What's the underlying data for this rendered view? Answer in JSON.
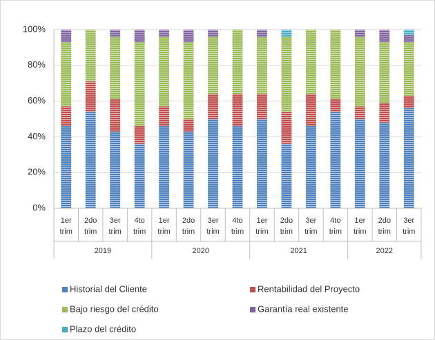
{
  "chart_data": {
    "type": "stacked_bar_percent",
    "category_groups": [
      {
        "name": "2019",
        "categories": [
          "1er trim",
          "2do trim",
          "3er trim",
          "4to trim"
        ]
      },
      {
        "name": "2020",
        "categories": [
          "1er trim",
          "2do trim",
          "3er trim",
          "4to trim"
        ]
      },
      {
        "name": "2021",
        "categories": [
          "1er trim",
          "2do trim",
          "3er trim",
          "4to trim"
        ]
      },
      {
        "name": "2022",
        "categories": [
          "1er trim",
          "2do trim",
          "3er trim"
        ]
      }
    ],
    "series": [
      {
        "name": "Historial del Cliente",
        "color": "#4f81bd",
        "values": [
          46,
          54,
          43,
          36,
          46,
          43,
          50,
          46,
          50,
          36,
          46,
          54,
          50,
          48,
          56
        ]
      },
      {
        "name": "Rentabilidad del Proyecto",
        "color": "#c0504d",
        "values": [
          11,
          17,
          18,
          10,
          11,
          7,
          14,
          18,
          14,
          18,
          18,
          7,
          7,
          11,
          7
        ]
      },
      {
        "name": "Bajo riesgo del crédito",
        "color": "#9bbb59",
        "values": [
          36,
          29,
          35,
          47,
          39,
          43,
          32,
          36,
          32,
          42,
          36,
          39,
          39,
          34,
          30
        ]
      },
      {
        "name": "Garantía real existente",
        "color": "#8064a2",
        "values": [
          7,
          0,
          4,
          7,
          4,
          7,
          4,
          0,
          4,
          0,
          0,
          0,
          4,
          7,
          4
        ]
      },
      {
        "name": "Plazo del crédito",
        "color": "#4bacc6",
        "values": [
          0,
          0,
          0,
          0,
          0,
          0,
          0,
          0,
          0,
          4,
          0,
          0,
          0,
          0,
          3
        ]
      }
    ],
    "ylim": [
      0,
      100
    ],
    "yticks": [
      {
        "value": 0,
        "label": "0%"
      },
      {
        "value": 20,
        "label": "20%"
      },
      {
        "value": 40,
        "label": "40%"
      },
      {
        "value": 60,
        "label": "60%"
      },
      {
        "value": 80,
        "label": "80%"
      },
      {
        "value": 100,
        "label": "100%"
      }
    ],
    "grid": true
  }
}
